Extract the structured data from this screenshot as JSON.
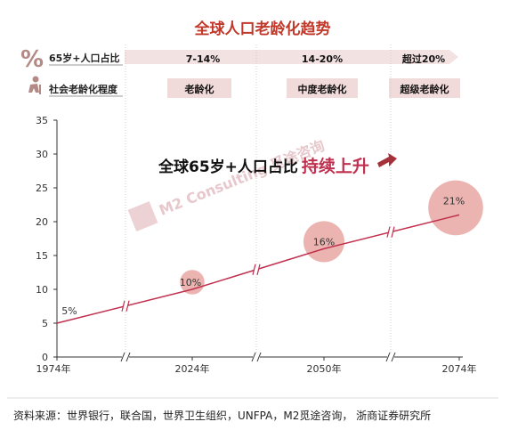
{
  "title": "全球人口老龄化趋势",
  "header": {
    "row1_label": "65岁+人口占比",
    "row2_label": "社会老龄化程度",
    "percent_icon": "percent-icon",
    "elderly_icon": "elderly-person-icon",
    "bands": [
      {
        "share": "7-14%",
        "stage": "老龄化"
      },
      {
        "share": "14-20%",
        "stage": "中度老龄化"
      },
      {
        "share": "超过20%",
        "stage": "超级老龄化"
      }
    ]
  },
  "headline": {
    "prefix": "全球65岁+人口占比",
    "accent": "持续上升"
  },
  "watermark": "M2 Consulting 觅途咨询",
  "source": "资料来源：世界银行，联合国，世界卫生组织，UNFPA，M2觅途咨询， 浙商证券研究所",
  "colors": {
    "line": "#c0304f",
    "bubble": "#e8a7a2",
    "title": "#c0392b",
    "band": "#f3e2e2"
  },
  "chart_data": {
    "type": "line",
    "title": "全球人口老龄化趋势",
    "xlabel": "",
    "ylabel": "",
    "ylim": [
      0,
      35
    ],
    "yticks": [
      0,
      5,
      10,
      15,
      20,
      25,
      30,
      35
    ],
    "x_tick_labels": [
      "1974年",
      "2024年",
      "2050年",
      "2074年"
    ],
    "x_axis_broken": true,
    "grid": false,
    "series": [
      {
        "points": [
          {
            "x": "1974年",
            "y": 5,
            "label": "5%"
          },
          {
            "x": "2024年",
            "y": 10,
            "label": "10%"
          },
          {
            "x": "2050年",
            "y": 16,
            "label": "16%"
          },
          {
            "x": "2074年",
            "y": 21,
            "label": "21%"
          }
        ]
      }
    ]
  }
}
